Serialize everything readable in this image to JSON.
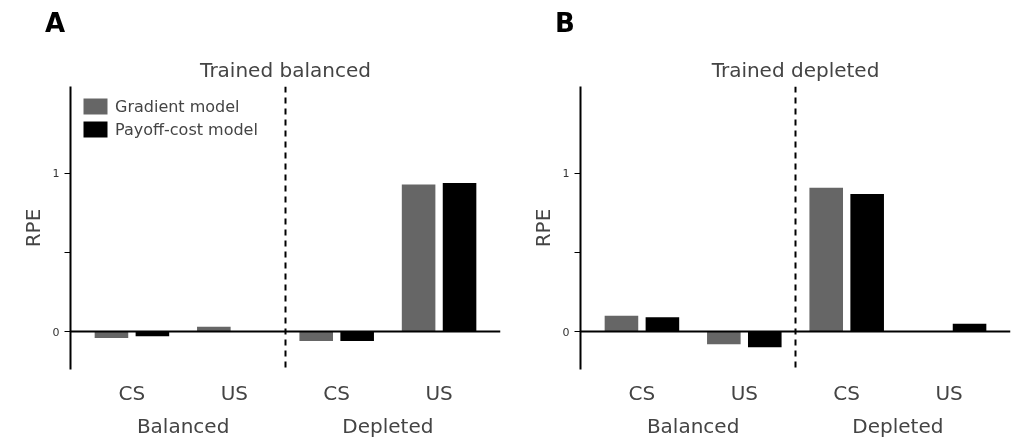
{
  "chart_data": [
    {
      "type": "bar",
      "title": "Trained balanced",
      "ylabel": "RPE",
      "categories": [
        "CS",
        "US",
        "CS",
        "US"
      ],
      "series": [
        {
          "name": "Gradient model",
          "color": "#666666",
          "values": [
            -0.04,
            0.03,
            -0.06,
            0.93
          ]
        },
        {
          "name": "Payoff-cost model",
          "color": "#000000",
          "values": [
            -0.03,
            0,
            -0.06,
            0.94
          ]
        }
      ],
      "ylim": [
        -0.24,
        1.55
      ],
      "yticks": [
        0,
        {
          "value": 0.5,
          "label": null
        },
        1
      ],
      "grid": false,
      "legend": "top left",
      "annotations": [
        "A",
        "Balanced",
        "Depleted"
      ]
    },
    {
      "type": "bar",
      "title": "Trained depleted",
      "ylabel": "RPE",
      "categories": [
        "CS",
        "US",
        "CS",
        "US"
      ],
      "series": [
        {
          "color": "#666666",
          "values": [
            0.1,
            -0.08,
            0.91,
            0
          ]
        },
        {
          "color": "#000000",
          "values": [
            0.09,
            -0.1,
            0.87,
            0.05
          ]
        }
      ],
      "ylim": [
        -0.24,
        1.55
      ],
      "yticks": [
        0,
        {
          "value": 0.5,
          "label": null
        },
        1
      ],
      "grid": false,
      "legend": false,
      "annotations": [
        "B",
        "Balanced",
        "Depleted"
      ]
    }
  ]
}
